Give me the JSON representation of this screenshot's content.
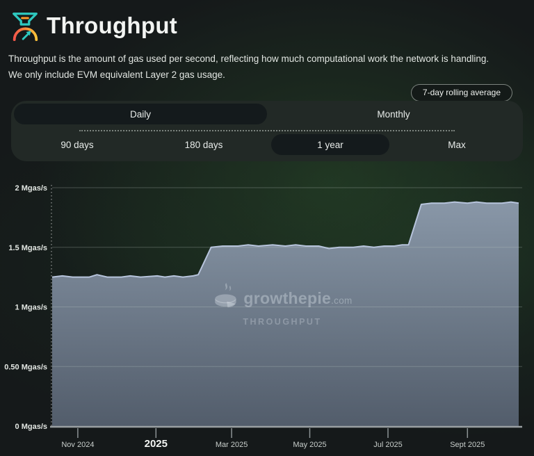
{
  "page": {
    "title": "Throughput",
    "description_lines": [
      "Throughput is the amount of gas used per second, reflecting how much computational work the network is handling.",
      "We only include EVM equivalent Layer 2 gas usage."
    ],
    "badge": "7-day rolling average"
  },
  "controls": {
    "frequency": [
      {
        "label": "Daily",
        "selected": true
      },
      {
        "label": "Monthly",
        "selected": false
      }
    ],
    "ranges": [
      {
        "label": "90 days",
        "selected": false
      },
      {
        "label": "180 days",
        "selected": false
      },
      {
        "label": "1 year",
        "selected": true
      },
      {
        "label": "Max",
        "selected": false
      }
    ]
  },
  "watermark": {
    "brand": "growthepie",
    "tld": ".com",
    "subtitle": "THROUGHPUT"
  },
  "colors": {
    "accent_teal": "#2ec9c0",
    "accent_orange": "#ff9c28",
    "gauge_red": "#f4564a",
    "gauge_orange": "#fb8c3c",
    "gauge_yellow": "#ffc43a",
    "area_top": "rgba(141,155,173,0.96)",
    "area_bottom": "rgba(86,97,112,0.94)",
    "line": "#b7c4dc",
    "gridline": "rgba(190,200,195,0.30)",
    "axis": "#9aa0a2",
    "tick": "#8d9395"
  },
  "chart_data": {
    "type": "area",
    "title": "Throughput",
    "ylabel": "Mgas/s",
    "unit": "Mgas/s",
    "grid": true,
    "legend": false,
    "ylim": [
      0,
      2
    ],
    "x_range": [
      "2024-10-12",
      "2025-10-11"
    ],
    "y_ticks": [
      {
        "v": 2,
        "label": "2 Mgas/s"
      },
      {
        "v": 1.5,
        "label": "1.5 Mgas/s"
      },
      {
        "v": 1,
        "label": "1 Mgas/s"
      },
      {
        "v": 0.5,
        "label": "0.50 Mgas/s"
      },
      {
        "v": 0,
        "label": "0 Mgas/s"
      }
    ],
    "x_ticks": [
      {
        "date": "2024-11-01",
        "label": "Nov 2024",
        "bold": false
      },
      {
        "date": "2025-01-01",
        "label": "2025",
        "bold": true
      },
      {
        "date": "2025-03-01",
        "label": "Mar 2025",
        "bold": false
      },
      {
        "date": "2025-05-01",
        "label": "May 2025",
        "bold": false
      },
      {
        "date": "2025-07-01",
        "label": "Jul 2025",
        "bold": false
      },
      {
        "date": "2025-09-01",
        "label": "Sept 2025",
        "bold": false
      }
    ],
    "series": [
      {
        "name": "Layer 2 throughput (7-day rolling average)",
        "points": [
          [
            "2024-10-12",
            1.25
          ],
          [
            "2024-10-20",
            1.26
          ],
          [
            "2024-10-28",
            1.25
          ],
          [
            "2024-11-10",
            1.25
          ],
          [
            "2024-11-16",
            1.27
          ],
          [
            "2024-11-24",
            1.25
          ],
          [
            "2024-12-05",
            1.25
          ],
          [
            "2024-12-12",
            1.26
          ],
          [
            "2024-12-20",
            1.25
          ],
          [
            "2025-01-02",
            1.26
          ],
          [
            "2025-01-08",
            1.25
          ],
          [
            "2025-01-15",
            1.26
          ],
          [
            "2025-01-22",
            1.25
          ],
          [
            "2025-01-30",
            1.26
          ],
          [
            "2025-02-03",
            1.27
          ],
          [
            "2025-02-13",
            1.5
          ],
          [
            "2025-02-22",
            1.51
          ],
          [
            "2025-03-06",
            1.51
          ],
          [
            "2025-03-14",
            1.52
          ],
          [
            "2025-03-22",
            1.51
          ],
          [
            "2025-04-02",
            1.52
          ],
          [
            "2025-04-12",
            1.51
          ],
          [
            "2025-04-20",
            1.52
          ],
          [
            "2025-04-28",
            1.51
          ],
          [
            "2025-05-08",
            1.51
          ],
          [
            "2025-05-16",
            1.49
          ],
          [
            "2025-05-24",
            1.5
          ],
          [
            "2025-06-04",
            1.5
          ],
          [
            "2025-06-12",
            1.51
          ],
          [
            "2025-06-20",
            1.5
          ],
          [
            "2025-06-28",
            1.51
          ],
          [
            "2025-07-06",
            1.51
          ],
          [
            "2025-07-12",
            1.52
          ],
          [
            "2025-07-17",
            1.52
          ],
          [
            "2025-07-27",
            1.86
          ],
          [
            "2025-08-04",
            1.87
          ],
          [
            "2025-08-14",
            1.87
          ],
          [
            "2025-08-22",
            1.88
          ],
          [
            "2025-09-01",
            1.87
          ],
          [
            "2025-09-08",
            1.88
          ],
          [
            "2025-09-16",
            1.87
          ],
          [
            "2025-09-28",
            1.87
          ],
          [
            "2025-10-05",
            1.88
          ],
          [
            "2025-10-11",
            1.87
          ]
        ]
      }
    ]
  }
}
